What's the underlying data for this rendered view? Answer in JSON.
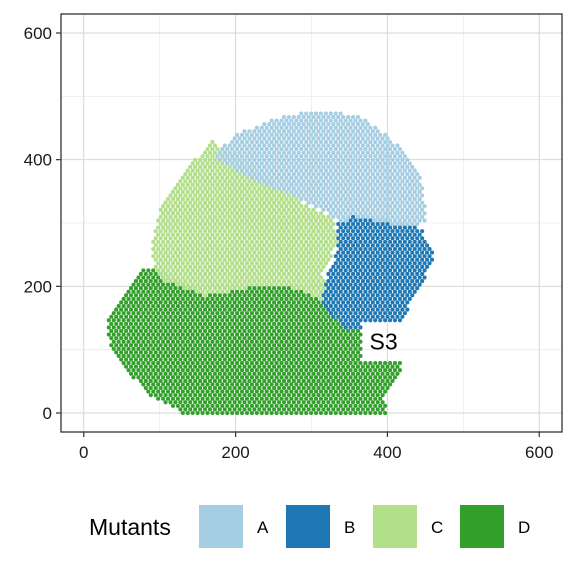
{
  "chart_data": {
    "type": "scatter",
    "xlim": [
      -30,
      630
    ],
    "ylim": [
      -30,
      630
    ],
    "x_ticks": [
      0,
      200,
      400,
      600
    ],
    "y_ticks": [
      0,
      200,
      400,
      600
    ],
    "x_tick_labels": [
      "0",
      "200",
      "400",
      "600"
    ],
    "y_tick_labels": [
      "0",
      "200",
      "400",
      "600"
    ],
    "grid": true,
    "legend": {
      "title": "Mutants",
      "position": "bottom",
      "entries": [
        "A",
        "B",
        "C",
        "D"
      ]
    },
    "series": [
      {
        "name": "A",
        "color": "#a6cee3",
        "region": [
          [
            165,
            400
          ],
          [
            200,
            440
          ],
          [
            260,
            468
          ],
          [
            310,
            478
          ],
          [
            360,
            470
          ],
          [
            400,
            440
          ],
          [
            430,
            400
          ],
          [
            448,
            360
          ],
          [
            450,
            300
          ],
          [
            420,
            295
          ],
          [
            355,
            310
          ],
          [
            340,
            300
          ],
          [
            300,
            330
          ],
          [
            220,
            370
          ],
          [
            175,
            400
          ]
        ]
      },
      {
        "name": "B",
        "color": "#1f78b4",
        "region": [
          [
            335,
            300
          ],
          [
            355,
            312
          ],
          [
            420,
            300
          ],
          [
            445,
            290
          ],
          [
            462,
            250
          ],
          [
            448,
            208
          ],
          [
            420,
            150
          ],
          [
            410,
            130
          ],
          [
            410,
            130
          ],
          [
            350,
            130
          ],
          [
            330,
            150
          ],
          [
            312,
            170
          ],
          [
            318,
            210
          ],
          [
            330,
            240
          ],
          [
            335,
            270
          ]
        ]
      },
      {
        "name": "C",
        "color": "#b2df8a",
        "region": [
          [
            100,
            320
          ],
          [
            130,
            380
          ],
          [
            170,
            430
          ],
          [
            205,
            400
          ],
          [
            240,
            370
          ],
          [
            290,
            330
          ],
          [
            330,
            305
          ],
          [
            335,
            270
          ],
          [
            315,
            220
          ],
          [
            318,
            175
          ],
          [
            270,
            200
          ],
          [
            230,
            200
          ],
          [
            160,
            185
          ],
          [
            100,
            210
          ],
          [
            88,
            250
          ]
        ]
      },
      {
        "name": "D",
        "color": "#33a02c",
        "region": [
          [
            35,
            160
          ],
          [
            60,
            195
          ],
          [
            80,
            230
          ],
          [
            100,
            225
          ],
          [
            160,
            185
          ],
          [
            230,
            200
          ],
          [
            270,
            200
          ],
          [
            318,
            175
          ],
          [
            350,
            130
          ],
          [
            400,
            130
          ],
          [
            420,
            90
          ],
          [
            415,
            55
          ],
          [
            395,
            30
          ],
          [
            400,
            0
          ],
          [
            130,
            0
          ],
          [
            85,
            30
          ],
          [
            40,
            90
          ],
          [
            30,
            130
          ]
        ]
      }
    ],
    "annotations": [
      {
        "text": "S3",
        "x": 395,
        "y": 113
      }
    ]
  }
}
